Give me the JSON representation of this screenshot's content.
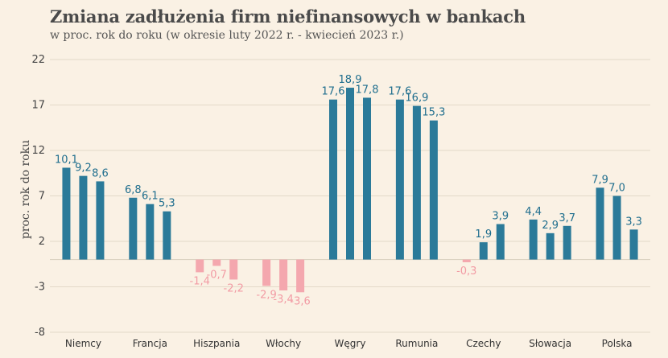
{
  "title": "Zmiana zadłużenia firm niefinansowych w bankach",
  "subtitle": "w proc. rok do roku (w okresie luty 2022 r. - kwiecień 2023 r.)",
  "chart_data": {
    "type": "bar",
    "title": "Zmiana zadłużenia firm niefinansowych w bankach",
    "subtitle": "w proc. rok do roku (w okresie luty 2022 r. - kwiecień 2023 r.)",
    "xlabel": "",
    "ylabel": "proc. rok do roku",
    "ylim": [
      -8,
      22
    ],
    "yticks": [
      22,
      17,
      12,
      7,
      2,
      -3,
      -8
    ],
    "ytick_labels": [
      "22",
      "17",
      "12",
      "7",
      "2",
      "-3",
      "-8"
    ],
    "grid": true,
    "colors": {
      "positive": "#2b7a99",
      "negative": "#f4a7ae",
      "positive_label": "#1f6e8e",
      "negative_label": "#f29ba4"
    },
    "categories": [
      "Niemcy",
      "Francja",
      "Hiszpania",
      "Włochy",
      "Węgry",
      "Rumunia",
      "Czechy",
      "Słowacja",
      "Polska"
    ],
    "groups": [
      {
        "category": "Niemcy",
        "values": [
          10.1,
          9.2,
          8.6
        ],
        "labels": [
          "10,1",
          "9,2",
          "8,6"
        ]
      },
      {
        "category": "Francja",
        "values": [
          6.8,
          6.1,
          5.3
        ],
        "labels": [
          "6,8",
          "6,1",
          "5,3"
        ]
      },
      {
        "category": "Hiszpania",
        "values": [
          -1.4,
          -0.7,
          -2.2
        ],
        "labels": [
          "-1,4",
          "-0,7",
          "-2,2"
        ]
      },
      {
        "category": "Włochy",
        "values": [
          -2.9,
          -3.4,
          -3.6
        ],
        "labels": [
          "-2,9",
          "-3,4",
          "-3,6"
        ]
      },
      {
        "category": "Węgry",
        "values": [
          17.6,
          18.9,
          17.8
        ],
        "labels": [
          "17,6",
          "18,9",
          "17,8"
        ]
      },
      {
        "category": "Rumunia",
        "values": [
          17.6,
          16.9,
          15.3
        ],
        "labels": [
          "17,6",
          "16,9",
          "15,3"
        ]
      },
      {
        "category": "Czechy",
        "values": [
          -0.3,
          1.9,
          3.9
        ],
        "labels": [
          "-0,3",
          "1,9",
          "3,9"
        ]
      },
      {
        "category": "Słowacja",
        "values": [
          4.4,
          2.9,
          3.7
        ],
        "labels": [
          "4,4",
          "2,9",
          "3,7"
        ]
      },
      {
        "category": "Polska",
        "values": [
          7.9,
          7.0,
          3.3
        ],
        "labels": [
          "7,9",
          "7,0",
          "3,3"
        ]
      }
    ]
  }
}
